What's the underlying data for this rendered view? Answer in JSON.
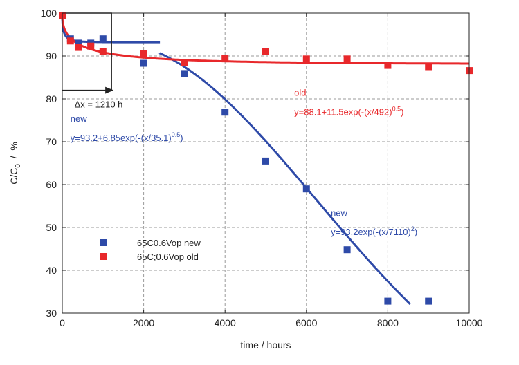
{
  "chart_data": {
    "type": "scatter",
    "xlabel": "time  / hours",
    "ylabel": "C/C",
    "ylabel_sub": "0",
    "ylabel_unit": "  /  %",
    "xlim": [
      0,
      10000
    ],
    "ylim": [
      30,
      100
    ],
    "x_ticks": [
      0,
      2000,
      4000,
      6000,
      8000,
      10000
    ],
    "y_ticks": [
      30,
      40,
      50,
      60,
      70,
      80,
      90,
      100
    ],
    "grid": true,
    "legend_position": "bottom-left",
    "colors": {
      "new": "#2e4aa8",
      "old": "#e8282b"
    },
    "series": [
      {
        "name": "65C0.6Vop new",
        "color": "#2e4aa8",
        "points": [
          [
            0,
            99.5
          ],
          [
            200,
            94
          ],
          [
            400,
            93
          ],
          [
            700,
            93
          ],
          [
            1000,
            94
          ],
          [
            2000,
            88.3
          ],
          [
            3000,
            85.9
          ],
          [
            4000,
            76.9
          ],
          [
            5000,
            65.5
          ],
          [
            6000,
            59
          ],
          [
            7000,
            44.8
          ],
          [
            8000,
            32.8
          ],
          [
            9000,
            32.8
          ]
        ]
      },
      {
        "name": "65C;0.6Vop old",
        "color": "#e8282b",
        "points": [
          [
            0,
            99.5
          ],
          [
            200,
            93.5
          ],
          [
            400,
            92
          ],
          [
            700,
            92.3
          ],
          [
            1000,
            91
          ],
          [
            2000,
            90.5
          ],
          [
            3000,
            88.5
          ],
          [
            4000,
            89.5
          ],
          [
            5000,
            91
          ],
          [
            6000,
            89.3
          ],
          [
            7000,
            89.3
          ],
          [
            8000,
            87.8
          ],
          [
            9000,
            87.5
          ],
          [
            10000,
            86.6
          ]
        ]
      }
    ],
    "fits": [
      {
        "series": "new",
        "segment": "early",
        "a": 93.2,
        "b": 6.85,
        "tau": 35.1,
        "beta": 0.5,
        "x_range": [
          0,
          2400
        ]
      },
      {
        "series": "new",
        "segment": "late",
        "a": 93.2,
        "tau": 7110,
        "beta": 2,
        "shift": 1210,
        "x_range": [
          2400,
          8550
        ]
      },
      {
        "series": "old",
        "a": 88.1,
        "b": 11.5,
        "tau": 492,
        "beta": 0.5,
        "x_range": [
          0,
          10000
        ]
      }
    ],
    "shift_arrow": {
      "from_x": 0,
      "to_x": 1210,
      "y": 82,
      "box_top_y": 100
    },
    "annotations": [
      {
        "id": "dx",
        "text": "Δx = 1210 h"
      },
      {
        "id": "new_early_label",
        "text": "new"
      },
      {
        "id": "new_early_eq",
        "text": "y=93.2+6.85exp(-(x/35.1)",
        "sup": "0.5",
        "tail": ")"
      },
      {
        "id": "old_label",
        "text": "old"
      },
      {
        "id": "old_eq",
        "text": "y=88.1+11.5exp(-(x/492)",
        "sup": "0.5",
        "tail": ")"
      },
      {
        "id": "new_late_label",
        "text": "new"
      },
      {
        "id": "new_late_eq",
        "text": "y=93.2exp(-(x/7110)",
        "sup": "2",
        "tail": ")"
      }
    ]
  }
}
